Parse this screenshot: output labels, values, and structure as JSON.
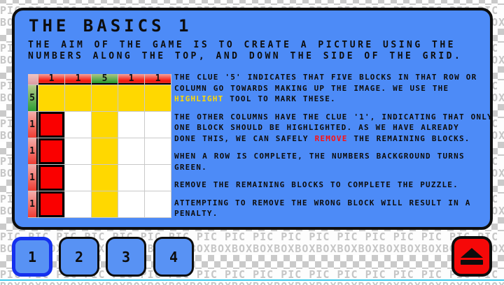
{
  "header": {
    "title": "THE BASICS 1",
    "subtitle_lines": [
      "THE AIM OF THE GAME IS TO CREATE A PICTURE USING THE",
      "NUMBERS ALONG THE TOP, AND DOWN THE SIDE OF THE GRID."
    ]
  },
  "grid": {
    "top_clues": [
      {
        "value": "1",
        "complete": false
      },
      {
        "value": "1",
        "complete": false
      },
      {
        "value": "5",
        "complete": true
      },
      {
        "value": "1",
        "complete": false
      },
      {
        "value": "1",
        "complete": false
      }
    ],
    "left_clues": [
      {
        "value": "5",
        "complete": true
      },
      {
        "value": "1",
        "complete": false
      },
      {
        "value": "1",
        "complete": false
      },
      {
        "value": "1",
        "complete": false
      },
      {
        "value": "1",
        "complete": false
      }
    ],
    "cells": [
      [
        "Y",
        "Y",
        "Y",
        "Y",
        "Y"
      ],
      [
        "R",
        "W",
        "Y",
        "W",
        "W"
      ],
      [
        "R",
        "W",
        "Y",
        "W",
        "W"
      ],
      [
        "R",
        "W",
        "Y",
        "W",
        "W"
      ],
      [
        "R",
        "W",
        "Y",
        "W",
        "W"
      ]
    ],
    "legend": {
      "Y": "highlighted",
      "R": "block-to-remove",
      "W": "empty"
    }
  },
  "tutorial": {
    "p1_lines": [
      "THE CLUE '5' INDICATES THAT FIVE BLOCKS IN THAT ROW OR",
      "COLUMN GO TOWARDS MAKING UP THE IMAGE. WE USE THE"
    ],
    "p1_highlight_word": "HIGHLIGHT",
    "p1_tail": " TOOL TO MARK THESE.",
    "p2_lines": [
      "THE OTHER COLUMNS HAVE THE CLUE '1', INDICATING THAT ONLY",
      "ONE BLOCK SHOULD BE HIGHLIGHTED. AS WE HAVE ALREADY"
    ],
    "p2_lead": "DONE THIS, WE CAN SAFELY ",
    "p2_remove_word": "REMOVE",
    "p2_tail": " THE REMAINING BLOCKS.",
    "p3_lines": [
      "WHEN A ROW IS COMPLETE, THE NUMBERS BACKGROUND TURNS",
      "GREEN."
    ],
    "p4_line": "REMOVE THE REMAINING BLOCKS TO COMPLETE THE PUZZLE.",
    "p5_lines": [
      "ATTEMPTING TO REMOVE THE WRONG BLOCK WILL RESULT IN A",
      "PENALTY."
    ]
  },
  "nav": {
    "buttons": [
      {
        "label": "1",
        "selected": true
      },
      {
        "label": "2",
        "selected": false
      },
      {
        "label": "3",
        "selected": false
      },
      {
        "label": "4",
        "selected": false
      }
    ]
  },
  "background": {
    "box_row": "BOXBOXBOXBOXBOXBOXBOXBOXBOXBOXBOXBOXBOXBOXBOXBOXBOXBOXBOXBOXBOXBOXBOXBOXBOXBOXBOX",
    "pic_row": "PIC PIC PIC PIC PIC PIC PIC PIC PIC PIC PIC PIC PIC PIC PIC PIC PIC PIC PIC PIC PIC"
  },
  "colors": {
    "panel_blue": "#4d8bf7",
    "selected_border_blue": "#1430ee",
    "highlight_yellow": "#ffd800",
    "remove_red": "#ff0f0f",
    "block_red": "#fa0000",
    "complete_green": "#2e9e33",
    "clue_red": "#f6150a",
    "pattern_gray": "#cacaca",
    "bottom_line_cyan": "#3ec9ea",
    "eject_red": "#f60808"
  }
}
